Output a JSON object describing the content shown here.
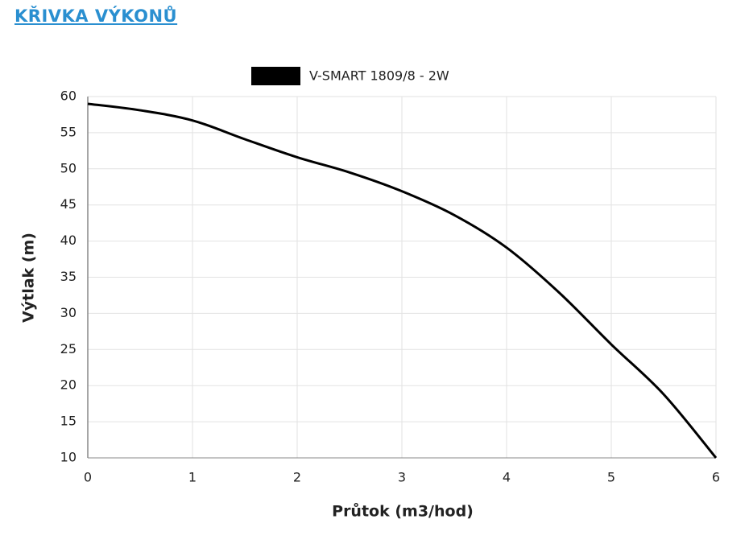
{
  "header": {
    "title": "KŘIVKA VÝKONŮ"
  },
  "chart_data": {
    "type": "line",
    "x_label": "Průtok (m3/hod)",
    "y_label": "Výtlak (m)",
    "x": [
      0,
      0.5,
      1,
      1.5,
      2,
      2.5,
      3,
      3.5,
      4,
      4.5,
      5,
      5.5,
      6
    ],
    "series": [
      {
        "name": "V-SMART 1809/8 - 2W",
        "color": "#000000",
        "values": [
          59,
          58.1,
          56.7,
          54.1,
          51.6,
          49.5,
          46.9,
          43.6,
          39.1,
          32.9,
          25.7,
          18.8,
          10
        ]
      }
    ],
    "xlim": [
      0,
      6
    ],
    "xticks": [
      0,
      1,
      2,
      3,
      4,
      5,
      6
    ],
    "ylim": [
      10,
      60
    ],
    "yticks": [
      10,
      15,
      20,
      25,
      30,
      35,
      40,
      45,
      50,
      55,
      60
    ],
    "grid": true,
    "legend": "top"
  }
}
